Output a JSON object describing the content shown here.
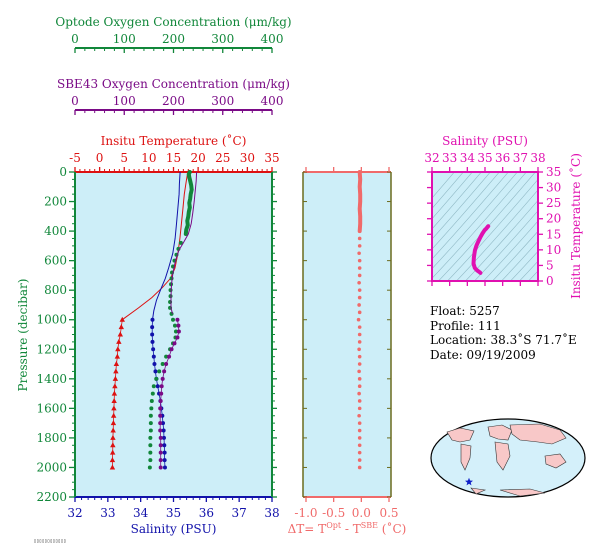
{
  "colors": {
    "optode": "#11873a",
    "sbe": "#7a0a86",
    "temperature": "#dd1111",
    "salinity": "#1111aa",
    "delta": "#f06a6a",
    "ts": "#e010b0",
    "pressure_axis": "#11873a",
    "panel_bg": "#cdeef8",
    "panel_frame": "#6b6b1e"
  },
  "axes": {
    "optode_title": "Optode Oxygen Concentration (μm/kg)",
    "sbe_title": "SBE43 Oxygen Concentration (μm/kg)",
    "oxygen_ticks": [
      "0",
      "100",
      "200",
      "300",
      "400"
    ],
    "temperature_title": "Insitu Temperature (˚C)",
    "temperature_ticks": [
      "-5",
      "0",
      "5",
      "10",
      "15",
      "20",
      "25",
      "30",
      "35"
    ],
    "salinity_title": "Salinity (PSU)",
    "salinity_ticks": [
      "32",
      "33",
      "34",
      "35",
      "36",
      "37",
      "38"
    ],
    "pressure_title": "Pressure (decibar)",
    "pressure_ticks": [
      "0",
      "200",
      "400",
      "600",
      "800",
      "1000",
      "1200",
      "1400",
      "1600",
      "1800",
      "2000",
      "2200"
    ],
    "delta_ticks": [
      "-1.0",
      "-0.5",
      "0.0",
      "0.5"
    ],
    "delta_title_main": "ΔT= T",
    "delta_sup1": "Opt",
    "delta_mid": " - T",
    "delta_sup2": "SBE",
    "delta_unit": " (˚C)",
    "ts_salinity_title": "Salinity (PSU)",
    "ts_salinity_ticks": [
      "32",
      "33",
      "34",
      "35",
      "36",
      "37",
      "38"
    ],
    "ts_temp_title": "Insitu Temperature (˚C)",
    "ts_temp_ticks": [
      "0",
      "5",
      "10",
      "15",
      "20",
      "25",
      "30",
      "35"
    ]
  },
  "info": {
    "float": "Float:  5257",
    "profile": "Profile:  111",
    "location": "Location:  38.3˚S  71.7˚E",
    "date": "Date:  09/19/2009"
  },
  "stamp": "▯▯▯▯▯▯▯▯▯▯▯▯",
  "chart_data": [
    {
      "type": "line",
      "name": "profile",
      "y_axis": "pressure (decibar)",
      "ylim": [
        2200,
        0
      ],
      "series": [
        {
          "name": "temperature",
          "xlim": [
            -5,
            35
          ],
          "continuous": [
            [
              17.9,
              0
            ],
            [
              17.6,
              60
            ],
            [
              17.2,
              150
            ],
            [
              16.9,
              250
            ],
            [
              16.6,
              350
            ],
            [
              16.3,
              450
            ],
            [
              15.9,
              550
            ],
            [
              15.3,
              650
            ],
            [
              14.4,
              720
            ],
            [
              12.8,
              780
            ],
            [
              10.6,
              850
            ],
            [
              7.9,
              920
            ],
            [
              5.4,
              980
            ],
            [
              4.6,
              1000
            ]
          ],
          "points": [
            [
              4.6,
              1000
            ],
            [
              4.4,
              1050
            ],
            [
              4.2,
              1100
            ],
            [
              3.9,
              1150
            ],
            [
              3.7,
              1200
            ],
            [
              3.6,
              1250
            ],
            [
              3.4,
              1300
            ],
            [
              3.3,
              1350
            ],
            [
              3.2,
              1400
            ],
            [
              3.1,
              1450
            ],
            [
              3.0,
              1500
            ],
            [
              2.95,
              1550
            ],
            [
              2.9,
              1600
            ],
            [
              2.85,
              1650
            ],
            [
              2.8,
              1700
            ],
            [
              2.75,
              1750
            ],
            [
              2.7,
              1800
            ],
            [
              2.68,
              1850
            ],
            [
              2.65,
              1900
            ],
            [
              2.6,
              1950
            ],
            [
              2.6,
              2000
            ]
          ]
        },
        {
          "name": "salinity",
          "xlim": [
            32,
            38
          ],
          "continuous": [
            [
              35.2,
              0
            ],
            [
              35.18,
              80
            ],
            [
              35.17,
              150
            ],
            [
              35.13,
              250
            ],
            [
              35.09,
              350
            ],
            [
              35.05,
              450
            ],
            [
              34.98,
              550
            ],
            [
              34.85,
              650
            ],
            [
              34.75,
              720
            ],
            [
              34.62,
              790
            ],
            [
              34.48,
              870
            ],
            [
              34.4,
              940
            ],
            [
              34.36,
              1000
            ]
          ],
          "points": [
            [
              34.36,
              1000
            ],
            [
              34.35,
              1050
            ],
            [
              34.35,
              1100
            ],
            [
              34.36,
              1150
            ],
            [
              34.38,
              1200
            ],
            [
              34.4,
              1250
            ],
            [
              34.42,
              1300
            ],
            [
              34.45,
              1350
            ],
            [
              34.48,
              1400
            ],
            [
              34.52,
              1450
            ],
            [
              34.56,
              1500
            ],
            [
              34.6,
              1550
            ],
            [
              34.63,
              1600
            ],
            [
              34.66,
              1650
            ],
            [
              34.68,
              1700
            ],
            [
              34.7,
              1750
            ],
            [
              34.71,
              1800
            ],
            [
              34.72,
              1850
            ],
            [
              34.73,
              1900
            ],
            [
              34.73,
              1950
            ],
            [
              34.74,
              2000
            ]
          ]
        },
        {
          "name": "optode oxygen",
          "xlim": [
            0,
            400
          ],
          "thick": [
            [
              233,
              0
            ],
            [
              231,
              15
            ],
            [
              232,
              35
            ],
            [
              234,
              60
            ],
            [
              236,
              90
            ],
            [
              237,
              120
            ],
            [
              235,
              150
            ],
            [
              234,
              180
            ],
            [
              232,
              210
            ],
            [
              233,
              240
            ],
            [
              231,
              270
            ],
            [
              230,
              300
            ],
            [
              228,
              330
            ],
            [
              229,
              360
            ],
            [
              226,
              390
            ],
            [
              225,
              420
            ]
          ],
          "points": [
            [
              215,
              480
            ],
            [
              210,
              520
            ],
            [
              206,
              560
            ],
            [
              202,
              600
            ],
            [
              199,
              640
            ],
            [
              197,
              680
            ],
            [
              196,
              720
            ],
            [
              195,
              760
            ],
            [
              194,
              800
            ],
            [
              194,
              840
            ],
            [
              193,
              880
            ],
            [
              193,
              920
            ],
            [
              196,
              960
            ],
            [
              199,
              1000
            ],
            [
              203,
              1040
            ],
            [
              205,
              1080
            ],
            [
              204,
              1120
            ],
            [
              199,
              1160
            ],
            [
              193,
              1200
            ],
            [
              185,
              1250
            ],
            [
              178,
              1300
            ],
            [
              171,
              1350
            ],
            [
              165,
              1400
            ],
            [
              160,
              1450
            ],
            [
              158,
              1500
            ],
            [
              156,
              1550
            ],
            [
              155,
              1600
            ],
            [
              154,
              1650
            ],
            [
              154,
              1700
            ],
            [
              154,
              1750
            ],
            [
              153,
              1800
            ],
            [
              153,
              1850
            ],
            [
              153,
              1900
            ],
            [
              153,
              1950
            ],
            [
              152,
              2000
            ]
          ]
        },
        {
          "name": "sbe43 oxygen",
          "xlim": [
            0,
            400
          ],
          "continuous": [
            [
              247,
              0
            ],
            [
              246,
              60
            ],
            [
              244,
              130
            ],
            [
              242,
              200
            ],
            [
              239,
              280
            ],
            [
              236,
              350
            ],
            [
              230,
              420
            ],
            [
              220,
              480
            ],
            [
              211,
              530
            ],
            [
              204,
              600
            ],
            [
              199,
              680
            ],
            [
              196,
              760
            ],
            [
              195,
              840
            ],
            [
              195,
              920
            ],
            [
              198,
              960
            ]
          ],
          "points": [
            [
              208,
              1000
            ],
            [
              210,
              1040
            ],
            [
              211,
              1080
            ],
            [
              208,
              1120
            ],
            [
              202,
              1160
            ],
            [
              196,
              1200
            ],
            [
              191,
              1250
            ],
            [
              185,
              1300
            ],
            [
              181,
              1350
            ],
            [
              178,
              1400
            ],
            [
              176,
              1450
            ],
            [
              175,
              1500
            ],
            [
              174,
              1550
            ],
            [
              173,
              1600
            ],
            [
              173,
              1650
            ],
            [
              173,
              1700
            ],
            [
              173,
              1750
            ],
            [
              174,
              1800
            ],
            [
              174,
              1850
            ],
            [
              174,
              1900
            ],
            [
              174,
              1950
            ],
            [
              174,
              2000
            ]
          ]
        }
      ]
    },
    {
      "type": "scatter",
      "name": "temperature difference",
      "xlabel": "ΔT= T^Opt - T^SBE (˚C)",
      "xlim": [
        -1.0,
        0.5
      ],
      "ylim": [
        2200,
        0
      ],
      "thick": [
        [
          -0.03,
          0
        ],
        [
          -0.02,
          50
        ],
        [
          -0.03,
          100
        ],
        [
          -0.02,
          150
        ],
        [
          -0.02,
          200
        ],
        [
          -0.03,
          250
        ],
        [
          -0.02,
          300
        ],
        [
          -0.02,
          350
        ],
        [
          -0.03,
          400
        ]
      ],
      "points": [
        [
          -0.03,
          450
        ],
        [
          -0.03,
          500
        ],
        [
          -0.04,
          550
        ],
        [
          -0.03,
          600
        ],
        [
          -0.03,
          650
        ],
        [
          -0.03,
          700
        ],
        [
          -0.04,
          750
        ],
        [
          -0.03,
          800
        ],
        [
          -0.03,
          850
        ],
        [
          -0.04,
          900
        ],
        [
          -0.03,
          950
        ],
        [
          -0.05,
          1000
        ],
        [
          -0.03,
          1050
        ],
        [
          -0.03,
          1100
        ],
        [
          -0.03,
          1150
        ],
        [
          -0.04,
          1200
        ],
        [
          -0.03,
          1250
        ],
        [
          -0.03,
          1300
        ],
        [
          -0.04,
          1350
        ],
        [
          -0.03,
          1400
        ],
        [
          -0.03,
          1450
        ],
        [
          -0.04,
          1500
        ],
        [
          -0.03,
          1550
        ],
        [
          -0.03,
          1600
        ],
        [
          -0.04,
          1650
        ],
        [
          -0.03,
          1700
        ],
        [
          -0.03,
          1750
        ],
        [
          -0.03,
          1800
        ],
        [
          -0.03,
          1850
        ],
        [
          -0.03,
          1900
        ],
        [
          -0.03,
          1950
        ],
        [
          -0.03,
          2000
        ]
      ]
    },
    {
      "type": "line",
      "name": "temperature-salinity",
      "xlim": [
        32,
        38
      ],
      "ylim": [
        0,
        35
      ],
      "series": [
        {
          "name": "ts",
          "values": [
            [
              35.18,
              17.6
            ],
            [
              35.08,
              16.9
            ],
            [
              34.98,
              16.3
            ],
            [
              34.86,
              15.3
            ],
            [
              34.75,
              14.2
            ],
            [
              34.63,
              12.8
            ],
            [
              34.52,
              11.4
            ],
            [
              34.43,
              9.8
            ],
            [
              34.37,
              7.6
            ],
            [
              34.35,
              5.6
            ],
            [
              34.42,
              4.2
            ],
            [
              34.52,
              3.6
            ],
            [
              34.62,
              3.1
            ],
            [
              34.7,
              2.8
            ],
            [
              34.74,
              2.6
            ]
          ]
        }
      ]
    }
  ]
}
